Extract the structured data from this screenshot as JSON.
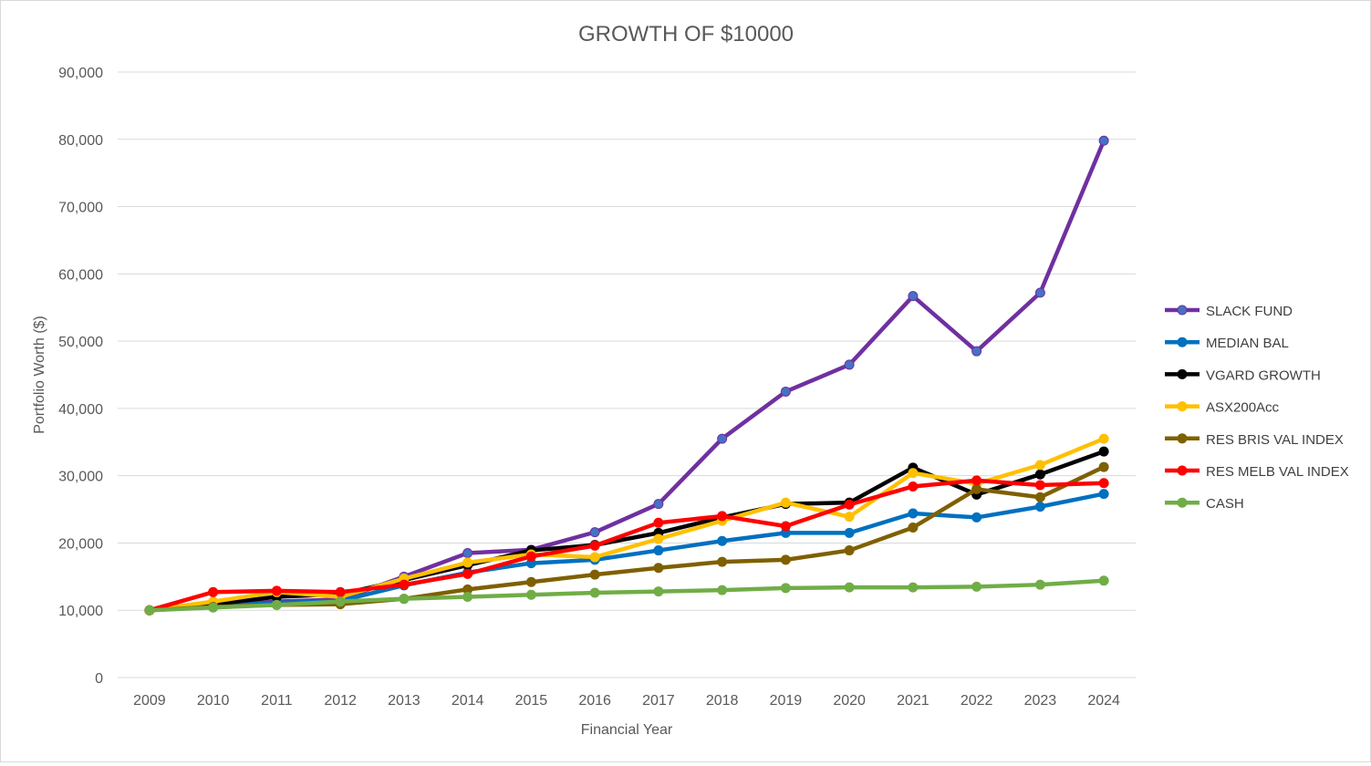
{
  "chart_data": {
    "type": "line",
    "title": "GROWTH OF $10000",
    "xlabel": "Financial Year",
    "ylabel": "Portfolio Worth ($)",
    "ylim": [
      0,
      90000
    ],
    "yticks": [
      0,
      10000,
      20000,
      30000,
      40000,
      50000,
      60000,
      70000,
      80000,
      90000
    ],
    "ytick_labels": [
      "0",
      "10,000",
      "20,000",
      "30,000",
      "40,000",
      "50,000",
      "60,000",
      "70,000",
      "80,000",
      "90,000"
    ],
    "grid": "horizontal",
    "legend_position": "right",
    "categories": [
      "2009",
      "2010",
      "2011",
      "2012",
      "2013",
      "2014",
      "2015",
      "2016",
      "2017",
      "2018",
      "2019",
      "2020",
      "2021",
      "2022",
      "2023",
      "2024"
    ],
    "series": [
      {
        "name": "SLACK FUND",
        "color": "#7030a0",
        "marker": "#4472c4",
        "values": [
          10000,
          10700,
          11300,
          11600,
          15000,
          18500,
          19000,
          21600,
          25800,
          35500,
          42500,
          46500,
          56700,
          48500,
          57200,
          79800
        ]
      },
      {
        "name": "MEDIAN BAL",
        "color": "#0070c0",
        "marker": "#0070c0",
        "values": [
          10000,
          10600,
          11100,
          11400,
          13700,
          15600,
          17000,
          17500,
          18900,
          20300,
          21500,
          21500,
          24400,
          23800,
          25400,
          27300
        ]
      },
      {
        "name": "VGARD GROWTH",
        "color": "#000000",
        "marker": "#000000",
        "values": [
          10000,
          10900,
          12000,
          12400,
          14500,
          16700,
          18900,
          19700,
          21500,
          23800,
          25800,
          26000,
          31200,
          27200,
          30200,
          33600
        ]
      },
      {
        "name": "ASX200Acc",
        "color": "#ffc000",
        "marker": "#ffc000",
        "values": [
          10000,
          11300,
          12700,
          12000,
          14700,
          17100,
          18300,
          17900,
          20600,
          23300,
          26000,
          23900,
          30400,
          28800,
          31600,
          35500
        ]
      },
      {
        "name": "RES BRIS VAL INDEX",
        "color": "#7f6000",
        "marker": "#7f6000",
        "values": [
          10000,
          10500,
          10800,
          10900,
          11700,
          13100,
          14200,
          15300,
          16300,
          17200,
          17500,
          18900,
          22300,
          28000,
          26800,
          31300
        ]
      },
      {
        "name": "RES MELB VAL INDEX",
        "color": "#ff0000",
        "marker": "#ff0000",
        "values": [
          10000,
          12700,
          12900,
          12700,
          13800,
          15400,
          18000,
          19600,
          23000,
          24000,
          22500,
          25700,
          28400,
          29300,
          28600,
          28900
        ]
      },
      {
        "name": "CASH",
        "color": "#70ad47",
        "marker": "#70ad47",
        "values": [
          10000,
          10400,
          10800,
          11300,
          11700,
          12000,
          12300,
          12600,
          12800,
          13000,
          13300,
          13400,
          13400,
          13500,
          13800,
          14400
        ]
      }
    ]
  }
}
